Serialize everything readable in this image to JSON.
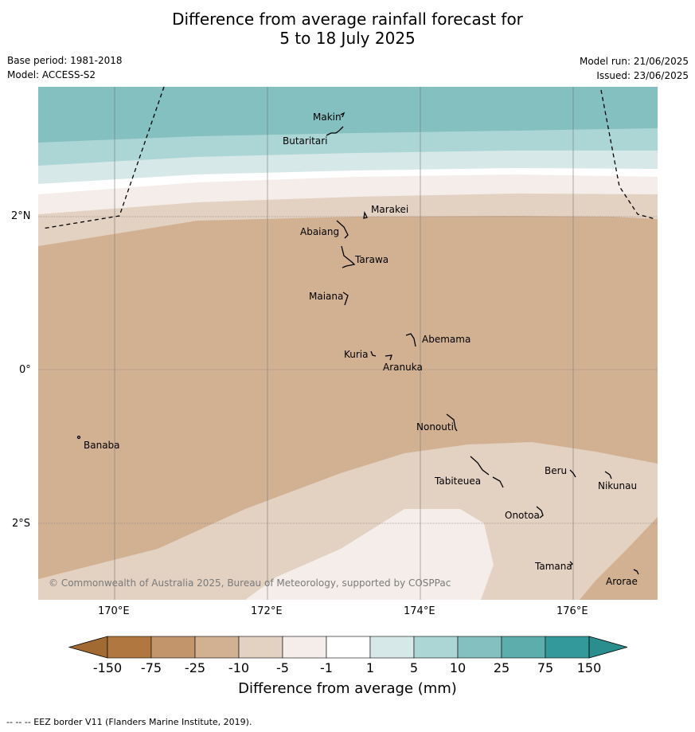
{
  "title_line1": "Difference from average rainfall forecast for",
  "title_line2": "5 to 18 July 2025",
  "base_period": "Base period: 1981-2018",
  "model": "Model: ACCESS-S2",
  "model_run": "Model run: 21/06/2025",
  "issued": "Issued: 23/06/2025",
  "copyright": "© Commonwealth of Australia 2025, Bureau of Meteorology, supported by COSPPac",
  "lat_ticks": [
    "2°N",
    "0°",
    "2°S"
  ],
  "lon_ticks": [
    "170°E",
    "172°E",
    "174°E",
    "176°E"
  ],
  "islands": {
    "makin": "Makin",
    "butaritari": "Butaritari",
    "marakei": "Marakei",
    "abaiang": "Abaiang",
    "tarawa": "Tarawa",
    "maiana": "Maiana",
    "abemama": "Abemama",
    "kuria": "Kuria",
    "aranuka": "Aranuka",
    "banaba": "Banaba",
    "nonouti": "Nonouti",
    "beru": "Beru",
    "tabiteuea": "Tabiteuea",
    "nikunau": "Nikunau",
    "onotoa": "Onotoa",
    "tamana": "Tamana",
    "arorae": "Arorae"
  },
  "colorbar": {
    "labels": [
      "-150",
      "-75",
      "-25",
      "-10",
      "-5",
      "-1",
      "1",
      "5",
      "10",
      "25",
      "75",
      "150"
    ],
    "colors": [
      "#b07840",
      "#c2956a",
      "#d2b193",
      "#e3d1c2",
      "#f4ede9",
      "#ffffff",
      "#d6e9e8",
      "#acd6d5",
      "#83c0bf",
      "#5cadac",
      "#34999a"
    ],
    "low_extend_color": "#a06a32",
    "high_extend_color": "#2a8e8e",
    "title": "Difference from average (mm)"
  },
  "footnote": "--  --  -- EEZ border V11 (Flanders Marine Institute, 2019)."
}
